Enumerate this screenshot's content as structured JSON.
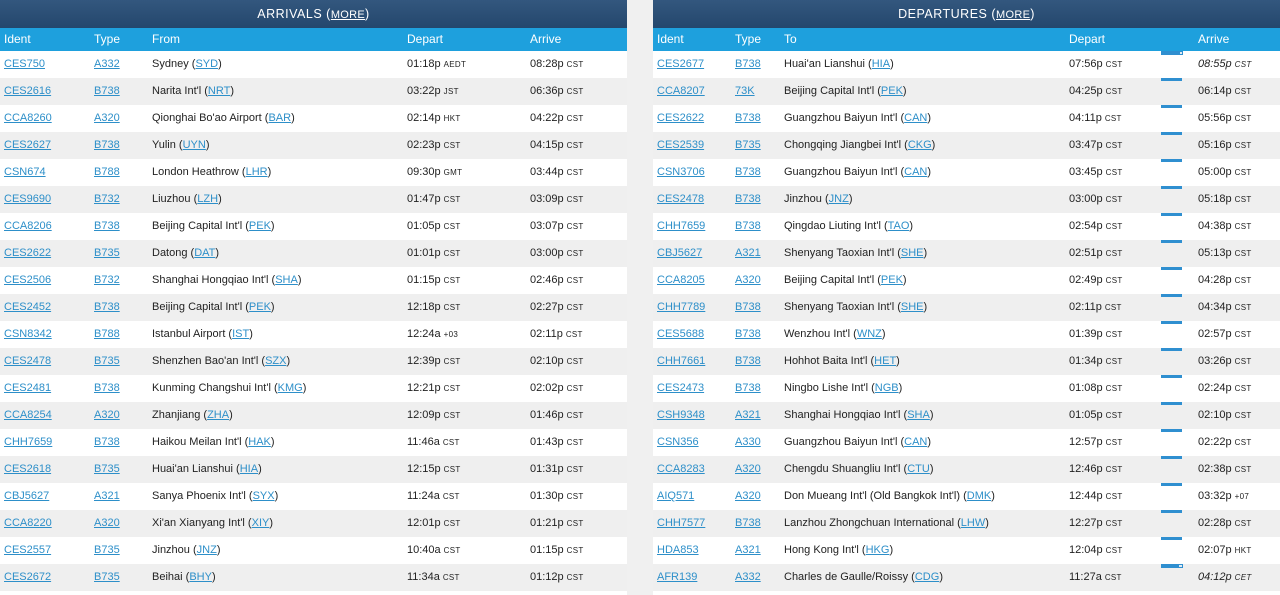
{
  "arrivals": {
    "title": "ARRIVALS",
    "more": "MORE",
    "columns": {
      "ident": "Ident",
      "type": "Type",
      "from": "From",
      "depart": "Depart",
      "arrive": "Arrive"
    },
    "rows": [
      {
        "ident": "CES750",
        "type": "A332",
        "place": "Sydney",
        "code": "SYD",
        "dep": "01:18p",
        "dep_tz": "AEDT",
        "arr": "08:28p",
        "arr_tz": "CST"
      },
      {
        "ident": "CES2616",
        "type": "B738",
        "place": "Narita Int'l",
        "code": "NRT",
        "dep": "03:22p",
        "dep_tz": "JST",
        "arr": "06:36p",
        "arr_tz": "CST"
      },
      {
        "ident": "CCA8260",
        "type": "A320",
        "place": "Qionghai Bo'ao Airport",
        "code": "BAR",
        "dep": "02:14p",
        "dep_tz": "HKT",
        "arr": "04:22p",
        "arr_tz": "CST"
      },
      {
        "ident": "CES2627",
        "type": "B738",
        "place": "Yulin",
        "code": "UYN",
        "dep": "02:23p",
        "dep_tz": "CST",
        "arr": "04:15p",
        "arr_tz": "CST"
      },
      {
        "ident": "CSN674",
        "type": "B788",
        "place": "London Heathrow",
        "code": "LHR",
        "dep": "09:30p",
        "dep_tz": "GMT",
        "arr": "03:44p",
        "arr_tz": "CST"
      },
      {
        "ident": "CES9690",
        "type": "B732",
        "place": "Liuzhou",
        "code": "LZH",
        "dep": "01:47p",
        "dep_tz": "CST",
        "arr": "03:09p",
        "arr_tz": "CST"
      },
      {
        "ident": "CCA8206",
        "type": "B738",
        "place": "Beijing Capital Int'l",
        "code": "PEK",
        "dep": "01:05p",
        "dep_tz": "CST",
        "arr": "03:07p",
        "arr_tz": "CST"
      },
      {
        "ident": "CES2622",
        "type": "B735",
        "place": "Datong",
        "code": "DAT",
        "dep": "01:01p",
        "dep_tz": "CST",
        "arr": "03:00p",
        "arr_tz": "CST"
      },
      {
        "ident": "CES2506",
        "type": "B732",
        "place": "Shanghai Hongqiao Int'l",
        "code": "SHA",
        "dep": "01:15p",
        "dep_tz": "CST",
        "arr": "02:46p",
        "arr_tz": "CST"
      },
      {
        "ident": "CES2452",
        "type": "B738",
        "place": "Beijing Capital Int'l",
        "code": "PEK",
        "dep": "12:18p",
        "dep_tz": "CST",
        "arr": "02:27p",
        "arr_tz": "CST"
      },
      {
        "ident": "CSN8342",
        "type": "B788",
        "place": "Istanbul Airport",
        "code": "IST",
        "dep": "12:24a",
        "dep_tz": "+03",
        "arr": "02:11p",
        "arr_tz": "CST"
      },
      {
        "ident": "CES2478",
        "type": "B735",
        "place": "Shenzhen Bao'an Int'l",
        "code": "SZX",
        "dep": "12:39p",
        "dep_tz": "CST",
        "arr": "02:10p",
        "arr_tz": "CST"
      },
      {
        "ident": "CES2481",
        "type": "B738",
        "place": "Kunming Changshui Int'l",
        "code": "KMG",
        "dep": "12:21p",
        "dep_tz": "CST",
        "arr": "02:02p",
        "arr_tz": "CST"
      },
      {
        "ident": "CCA8254",
        "type": "A320",
        "place": "Zhanjiang",
        "code": "ZHA",
        "dep": "12:09p",
        "dep_tz": "CST",
        "arr": "01:46p",
        "arr_tz": "CST"
      },
      {
        "ident": "CHH7659",
        "type": "B738",
        "place": "Haikou Meilan Int'l",
        "code": "HAK",
        "dep": "11:46a",
        "dep_tz": "CST",
        "arr": "01:43p",
        "arr_tz": "CST"
      },
      {
        "ident": "CES2618",
        "type": "B735",
        "place": "Huai'an Lianshui",
        "code": "HIA",
        "dep": "12:15p",
        "dep_tz": "CST",
        "arr": "01:31p",
        "arr_tz": "CST"
      },
      {
        "ident": "CBJ5627",
        "type": "A321",
        "place": "Sanya Phoenix Int'l",
        "code": "SYX",
        "dep": "11:24a",
        "dep_tz": "CST",
        "arr": "01:30p",
        "arr_tz": "CST"
      },
      {
        "ident": "CCA8220",
        "type": "A320",
        "place": "Xi'an Xianyang Int'l",
        "code": "XIY",
        "dep": "12:01p",
        "dep_tz": "CST",
        "arr": "01:21p",
        "arr_tz": "CST"
      },
      {
        "ident": "CES2557",
        "type": "B735",
        "place": "Jinzhou",
        "code": "JNZ",
        "dep": "10:40a",
        "dep_tz": "CST",
        "arr": "01:15p",
        "arr_tz": "CST"
      },
      {
        "ident": "CES2672",
        "type": "B735",
        "place": "Beihai",
        "code": "BHY",
        "dep": "11:34a",
        "dep_tz": "CST",
        "arr": "01:12p",
        "arr_tz": "CST"
      }
    ]
  },
  "departures": {
    "title": "DEPARTURES",
    "more": "MORE",
    "columns": {
      "ident": "Ident",
      "type": "Type",
      "to": "To",
      "depart": "Depart",
      "arrive": "Arrive"
    },
    "rows": [
      {
        "ident": "CES2677",
        "type": "B738",
        "place": "Huai'an Lianshui",
        "code": "HIA",
        "dep": "07:56p",
        "dep_tz": "CST",
        "arr": "08:55p",
        "arr_tz": "CST",
        "estimated": true,
        "progress": 0.9
      },
      {
        "ident": "CCA8207",
        "type": "73K",
        "place": "Beijing Capital Int'l",
        "code": "PEK",
        "dep": "04:25p",
        "dep_tz": "CST",
        "arr": "06:14p",
        "arr_tz": "CST",
        "estimated": false,
        "progress": 1
      },
      {
        "ident": "CES2622",
        "type": "B738",
        "place": "Guangzhou Baiyun Int'l",
        "code": "CAN",
        "dep": "04:11p",
        "dep_tz": "CST",
        "arr": "05:56p",
        "arr_tz": "CST",
        "estimated": false,
        "progress": 1
      },
      {
        "ident": "CES2539",
        "type": "B735",
        "place": "Chongqing Jiangbei Int'l",
        "code": "CKG",
        "dep": "03:47p",
        "dep_tz": "CST",
        "arr": "05:16p",
        "arr_tz": "CST",
        "estimated": false,
        "progress": 1
      },
      {
        "ident": "CSN3706",
        "type": "B738",
        "place": "Guangzhou Baiyun Int'l",
        "code": "CAN",
        "dep": "03:45p",
        "dep_tz": "CST",
        "arr": "05:00p",
        "arr_tz": "CST",
        "estimated": false,
        "progress": 1
      },
      {
        "ident": "CES2478",
        "type": "B738",
        "place": "Jinzhou",
        "code": "JNZ",
        "dep": "03:00p",
        "dep_tz": "CST",
        "arr": "05:18p",
        "arr_tz": "CST",
        "estimated": false,
        "progress": 1
      },
      {
        "ident": "CHH7659",
        "type": "B738",
        "place": "Qingdao Liuting Int'l",
        "code": "TAO",
        "dep": "02:54p",
        "dep_tz": "CST",
        "arr": "04:38p",
        "arr_tz": "CST",
        "estimated": false,
        "progress": 1
      },
      {
        "ident": "CBJ5627",
        "type": "A321",
        "place": "Shenyang Taoxian Int'l",
        "code": "SHE",
        "dep": "02:51p",
        "dep_tz": "CST",
        "arr": "05:13p",
        "arr_tz": "CST",
        "estimated": false,
        "progress": 1
      },
      {
        "ident": "CCA8205",
        "type": "A320",
        "place": "Beijing Capital Int'l",
        "code": "PEK",
        "dep": "02:49p",
        "dep_tz": "CST",
        "arr": "04:28p",
        "arr_tz": "CST",
        "estimated": false,
        "progress": 1
      },
      {
        "ident": "CHH7789",
        "type": "B738",
        "place": "Shenyang Taoxian Int'l",
        "code": "SHE",
        "dep": "02:11p",
        "dep_tz": "CST",
        "arr": "04:34p",
        "arr_tz": "CST",
        "estimated": false,
        "progress": 1
      },
      {
        "ident": "CES5688",
        "type": "B738",
        "place": "Wenzhou Int'l",
        "code": "WNZ",
        "dep": "01:39p",
        "dep_tz": "CST",
        "arr": "02:57p",
        "arr_tz": "CST",
        "estimated": false,
        "progress": 1
      },
      {
        "ident": "CHH7661",
        "type": "B738",
        "place": "Hohhot Baita Int'l",
        "code": "HET",
        "dep": "01:34p",
        "dep_tz": "CST",
        "arr": "03:26p",
        "arr_tz": "CST",
        "estimated": false,
        "progress": 1
      },
      {
        "ident": "CES2473",
        "type": "B738",
        "place": "Ningbo Lishe Int'l",
        "code": "NGB",
        "dep": "01:08p",
        "dep_tz": "CST",
        "arr": "02:24p",
        "arr_tz": "CST",
        "estimated": false,
        "progress": 1
      },
      {
        "ident": "CSH9348",
        "type": "A321",
        "place": "Shanghai Hongqiao Int'l",
        "code": "SHA",
        "dep": "01:05p",
        "dep_tz": "CST",
        "arr": "02:10p",
        "arr_tz": "CST",
        "estimated": false,
        "progress": 1
      },
      {
        "ident": "CSN356",
        "type": "A330",
        "place": "Guangzhou Baiyun Int'l",
        "code": "CAN",
        "dep": "12:57p",
        "dep_tz": "CST",
        "arr": "02:22p",
        "arr_tz": "CST",
        "estimated": false,
        "progress": 1
      },
      {
        "ident": "CCA8283",
        "type": "A320",
        "place": "Chengdu Shuangliu Int'l",
        "code": "CTU",
        "dep": "12:46p",
        "dep_tz": "CST",
        "arr": "02:38p",
        "arr_tz": "CST",
        "estimated": false,
        "progress": 1
      },
      {
        "ident": "AIQ571",
        "type": "A320",
        "place": "Don Mueang Int'l (Old Bangkok Int'l)",
        "code": "DMK",
        "dep": "12:44p",
        "dep_tz": "CST",
        "arr": "03:32p",
        "arr_tz": "+07",
        "estimated": false,
        "progress": 1
      },
      {
        "ident": "CHH7577",
        "type": "B738",
        "place": "Lanzhou Zhongchuan International",
        "code": "LHW",
        "dep": "12:27p",
        "dep_tz": "CST",
        "arr": "02:28p",
        "arr_tz": "CST",
        "estimated": false,
        "progress": 1
      },
      {
        "ident": "HDA853",
        "type": "A321",
        "place": "Hong Kong Int'l",
        "code": "HKG",
        "dep": "12:04p",
        "dep_tz": "CST",
        "arr": "02:07p",
        "arr_tz": "HKT",
        "estimated": false,
        "progress": 1
      },
      {
        "ident": "AFR139",
        "type": "A332",
        "place": "Charles de Gaulle/Roissy",
        "code": "CDG",
        "dep": "11:27a",
        "dep_tz": "CST",
        "arr": "04:12p",
        "arr_tz": "CET",
        "estimated": true,
        "progress": 0.85
      }
    ]
  }
}
